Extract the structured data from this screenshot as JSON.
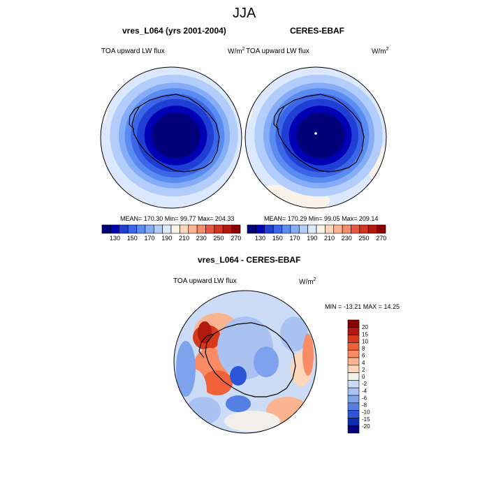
{
  "chart_data": [
    {
      "type": "heatmap",
      "panel_title": "vres_L064 (yrs 2001-2004)",
      "left_label": "TOA upward LW flux",
      "units": "W/m",
      "units_exp": "2",
      "stats": "MEAN= 170.30  Min=  99.77  Max= 204.33",
      "mean": 170.3,
      "min": 99.77,
      "max": 204.33,
      "colorbar_ticks": [
        "130",
        "150",
        "170",
        "190",
        "210",
        "230",
        "250",
        "270"
      ],
      "levels": [
        120,
        130,
        140,
        150,
        160,
        170,
        180,
        190,
        200,
        210,
        220,
        230,
        240,
        250,
        260,
        270,
        280
      ]
    },
    {
      "type": "heatmap",
      "panel_title": "CERES-EBAF",
      "left_label": "TOA upward LW flux",
      "units": "W/m",
      "units_exp": "2",
      "stats": "MEAN= 170.29  Min=  99.05  Max= 209.14",
      "mean": 170.29,
      "min": 99.05,
      "max": 209.14,
      "colorbar_ticks": [
        "130",
        "150",
        "170",
        "190",
        "210",
        "230",
        "250",
        "270"
      ],
      "levels": [
        120,
        130,
        140,
        150,
        160,
        170,
        180,
        190,
        200,
        210,
        220,
        230,
        240,
        250,
        260,
        270,
        280
      ]
    },
    {
      "type": "heatmap",
      "panel_title": "vres_L064 - CERES-EBAF",
      "left_label": "TOA upward LW flux",
      "units": "W/m",
      "units_exp": "2",
      "stats": "MIN = -13.21 MAX =  14.25",
      "min": -13.21,
      "max": 14.25,
      "colorbar_ticks": [
        "20",
        "15",
        "10",
        "8",
        "6",
        "4",
        "2",
        "0",
        "-2",
        "-4",
        "-6",
        "-8",
        "-10",
        "-15",
        "-20"
      ]
    }
  ],
  "page": {
    "title": "JJA"
  },
  "colors": {
    "abs_scale": [
      "#00007a",
      "#0000b4",
      "#1f3fd4",
      "#3b66e8",
      "#5a8bf0",
      "#85acf7",
      "#b2cdfb",
      "#dce8fd",
      "#fbf3ea",
      "#fdd8bd",
      "#fbb594",
      "#f68c6a",
      "#e9573f",
      "#d13420",
      "#b3170e",
      "#8a0000"
    ],
    "diff_scale": [
      "#8a0000",
      "#b01a0c",
      "#d63a1c",
      "#ef6138",
      "#f98c64",
      "#fbb48f",
      "#fcd6bc",
      "#f3efeb",
      "#ccdcf6",
      "#a9c2f2",
      "#7fa2ec",
      "#547fe3",
      "#2b55d6",
      "#0a2db8",
      "#00007a"
    ],
    "land": "#000000"
  }
}
